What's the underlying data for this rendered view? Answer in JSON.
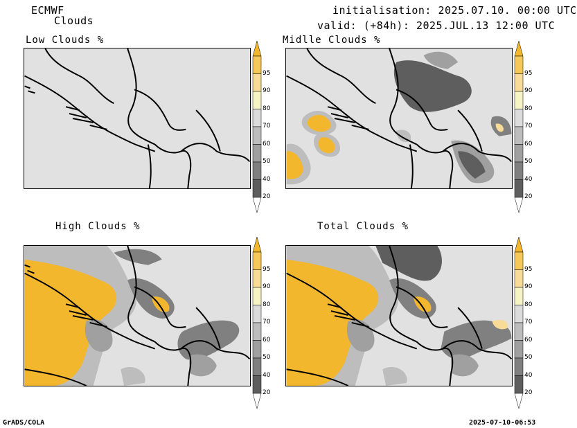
{
  "header": {
    "model": "ECMWF",
    "field": "Clouds",
    "initialisation": "initialisation: 2025.07.10. 00:00 UTC",
    "valid": "valid: (+84h): 2025.JUL.13 12:00 UTC"
  },
  "panels": [
    {
      "title": "Low Clouds %"
    },
    {
      "title": "Midlle Clouds %"
    },
    {
      "title": "High Clouds %"
    },
    {
      "title": "Total Clouds %"
    }
  ],
  "colorbar": {
    "levels": [
      "95",
      "90",
      "80",
      "70",
      "60",
      "50",
      "40",
      "20"
    ],
    "colors": [
      "#f2b72c",
      "#f5c85a",
      "#f7db96",
      "#f6f4c4",
      "#dcdcdc",
      "#bdbdbd",
      "#a0a0a0",
      "#808080",
      "#5e5e5e",
      "#ffffff"
    ]
  },
  "colors": {
    "background_field": "#e1e1e1",
    "high_cloud": "#f2b72c",
    "dark_cloud": "#5e5e5e"
  },
  "footer": {
    "left": "GrADS/COLA",
    "right": "2025-07-10-06:53"
  }
}
